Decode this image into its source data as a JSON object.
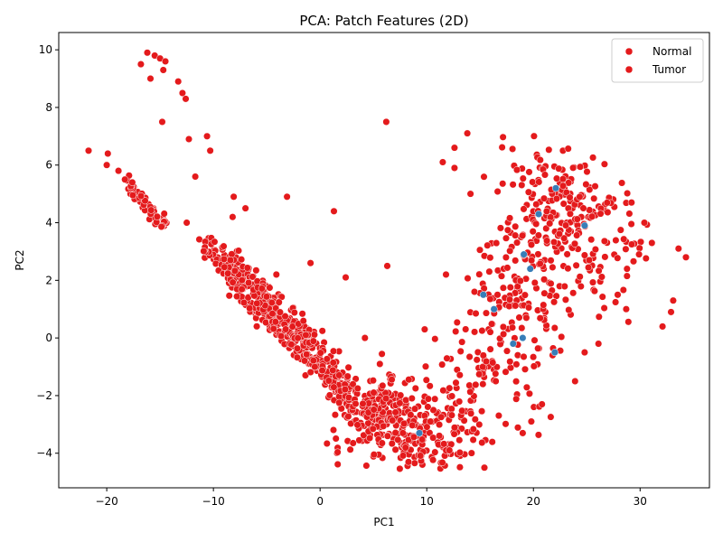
{
  "chart_data": {
    "type": "scatter",
    "title": "PCA: Patch Features (2D)",
    "xlabel": "PC1",
    "ylabel": "PC2",
    "xlim": [
      -24.5,
      36.5
    ],
    "ylim": [
      -5.2,
      10.6
    ],
    "xticks": [
      -20,
      -10,
      0,
      10,
      20,
      30
    ],
    "yticks": [
      -4,
      -2,
      0,
      2,
      4,
      6,
      8,
      10
    ],
    "grid": false,
    "legend_position": "top-right",
    "colors": {
      "normal": "#e41a1c",
      "tumor": "#e41a1c",
      "minor": "#377eb8",
      "edge": "#ffffff"
    },
    "series": [
      {
        "name": "Normal",
        "color": "#e41a1c",
        "points": [
          [
            -21.7,
            6.5
          ],
          [
            -19.9,
            6.4
          ],
          [
            -20.0,
            6.0
          ],
          [
            -18.9,
            5.8
          ],
          [
            -18.3,
            5.5
          ],
          [
            -17.6,
            5.4
          ],
          [
            -16.2,
            9.9
          ],
          [
            -15.5,
            9.8
          ],
          [
            -15.0,
            9.7
          ],
          [
            -14.5,
            9.6
          ],
          [
            -16.8,
            9.5
          ],
          [
            -14.7,
            9.3
          ],
          [
            -15.9,
            9.0
          ],
          [
            -13.3,
            8.9
          ],
          [
            -12.9,
            8.5
          ],
          [
            -12.6,
            8.3
          ],
          [
            -14.8,
            7.5
          ],
          [
            -10.6,
            7.0
          ],
          [
            -12.3,
            6.9
          ],
          [
            -10.3,
            6.5
          ],
          [
            -11.7,
            5.6
          ],
          [
            -8.1,
            4.9
          ],
          [
            -7.0,
            4.5
          ],
          [
            -8.2,
            4.2
          ],
          [
            -12.5,
            4.0
          ],
          [
            -3.1,
            4.9
          ],
          [
            -4.1,
            2.2
          ],
          [
            1.3,
            4.4
          ],
          [
            -0.9,
            2.6
          ],
          [
            2.4,
            2.1
          ],
          [
            6.2,
            7.5
          ],
          [
            6.3,
            2.5
          ],
          [
            4.2,
            0.0
          ],
          [
            13.8,
            7.1
          ],
          [
            12.6,
            6.6
          ],
          [
            11.5,
            6.1
          ]
        ],
        "bands": [
          {
            "x0": -18.0,
            "y0": 5.3,
            "x1": -14.5,
            "y1": 3.9,
            "n": 60,
            "spread": 0.15
          },
          {
            "x0": -11.0,
            "y0": 3.2,
            "x1": -8.0,
            "y1": 2.4,
            "n": 40,
            "spread": 0.25
          },
          {
            "x0": -9.0,
            "y0": 2.6,
            "x1": -4.0,
            "y1": 0.6,
            "n": 150,
            "spread": 0.4
          },
          {
            "x0": -6.0,
            "y0": 1.5,
            "x1": -1.0,
            "y1": -0.5,
            "n": 160,
            "spread": 0.4
          },
          {
            "x0": -2.0,
            "y0": 0.0,
            "x1": 3.0,
            "y1": -2.0,
            "n": 150,
            "spread": 0.45
          }
        ],
        "clusters": [
          {
            "cx": 5.5,
            "cy": -2.6,
            "sx": 2.2,
            "sy": 0.7,
            "n": 180
          },
          {
            "cx": 9.5,
            "cy": -3.3,
            "sx": 2.5,
            "sy": 0.6,
            "n": 150
          },
          {
            "cx": 13.0,
            "cy": -2.0,
            "sx": 2.5,
            "sy": 1.2,
            "n": 60
          },
          {
            "cx": 17.0,
            "cy": 0.5,
            "sx": 2.3,
            "sy": 1.8,
            "n": 80
          }
        ]
      },
      {
        "name": "Tumor",
        "color": "#e41a1c",
        "points": [
          [
            34.3,
            2.8
          ],
          [
            33.6,
            3.1
          ],
          [
            33.1,
            1.3
          ],
          [
            32.9,
            0.9
          ],
          [
            32.1,
            0.4
          ],
          [
            31.1,
            3.3
          ],
          [
            30.4,
            4.0
          ],
          [
            29.9,
            2.9
          ],
          [
            29.2,
            4.7
          ],
          [
            28.7,
            1.0
          ],
          [
            27.9,
            1.5
          ],
          [
            26.1,
            -0.2
          ],
          [
            24.8,
            -0.5
          ],
          [
            23.9,
            -1.5
          ],
          [
            21.8,
            -0.6
          ],
          [
            20.8,
            -2.3
          ],
          [
            19.8,
            -2.9
          ],
          [
            19.0,
            -3.3
          ],
          [
            15.4,
            -4.5
          ],
          [
            9.8,
            0.3
          ],
          [
            11.8,
            2.2
          ],
          [
            12.6,
            5.9
          ],
          [
            14.1,
            5.0
          ]
        ],
        "clusters": [
          {
            "cx": 22.0,
            "cy": 5.0,
            "sx": 2.5,
            "sy": 1.0,
            "n": 110
          },
          {
            "cx": 23.0,
            "cy": 3.0,
            "sx": 3.5,
            "sy": 1.4,
            "n": 110
          },
          {
            "cx": 19.0,
            "cy": 1.8,
            "sx": 2.5,
            "sy": 1.6,
            "n": 70
          },
          {
            "cx": 27.5,
            "cy": 3.6,
            "sx": 2.0,
            "sy": 0.9,
            "n": 30
          }
        ]
      },
      {
        "name": "",
        "color": "#377eb8",
        "points": [
          [
            22.1,
            5.2
          ],
          [
            20.5,
            4.3
          ],
          [
            24.8,
            3.9
          ],
          [
            19.7,
            2.4
          ],
          [
            19.1,
            2.9
          ],
          [
            15.3,
            1.5
          ],
          [
            16.3,
            1.0
          ],
          [
            19.0,
            0.0
          ],
          [
            18.1,
            -0.2
          ],
          [
            22.0,
            -0.5
          ],
          [
            9.3,
            -3.3
          ]
        ]
      }
    ]
  }
}
